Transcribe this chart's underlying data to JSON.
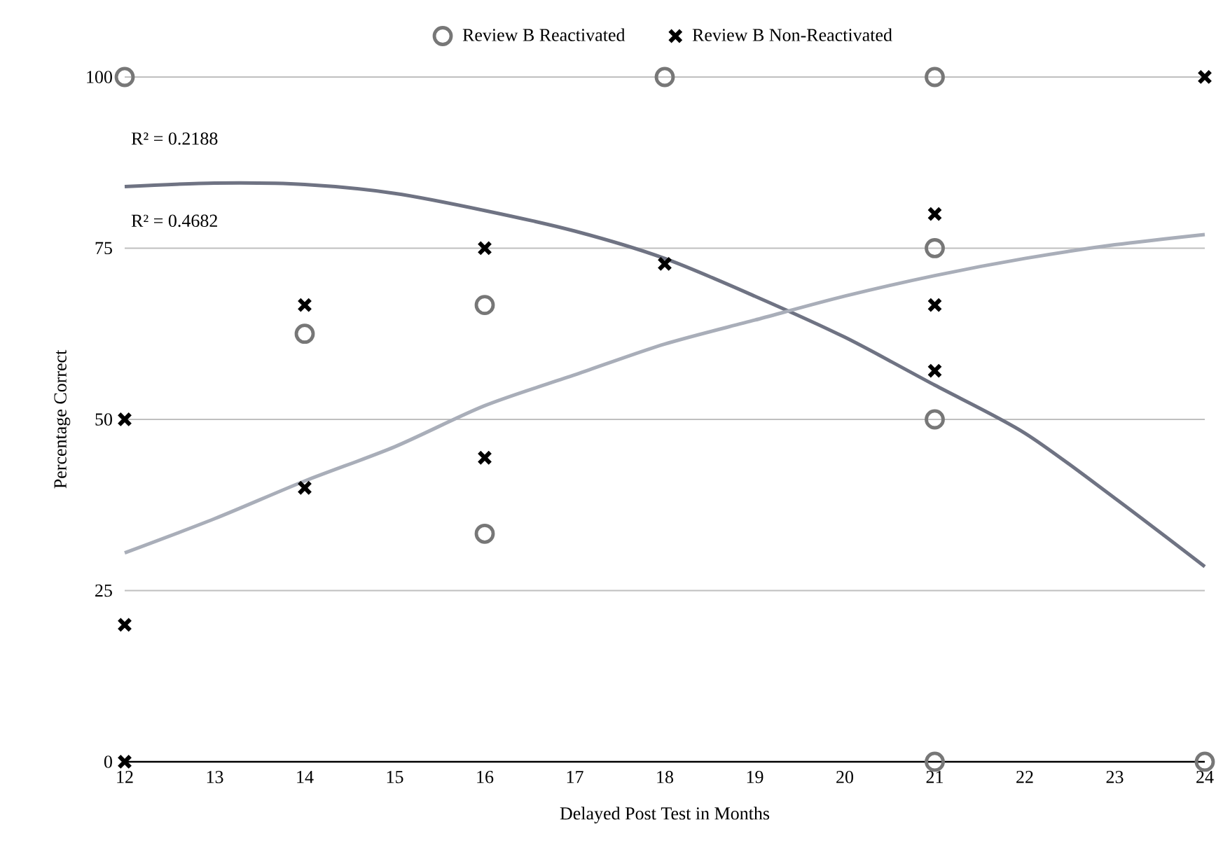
{
  "chart_data": {
    "type": "scatter",
    "xlabel": "Delayed Post Test in Months",
    "ylabel": "Percentage Correct",
    "xlim": [
      12,
      24
    ],
    "xticks": [
      12,
      13,
      14,
      15,
      16,
      17,
      18,
      19,
      20,
      21,
      22,
      23,
      24
    ],
    "ylim": [
      0,
      100
    ],
    "yticks": [
      0,
      25,
      50,
      75,
      100
    ],
    "grid": "y",
    "legend": "top",
    "annotations": [
      "R² = 0.2188",
      "R² = 0.4682"
    ],
    "series": [
      {
        "name": "Review B Reactivated",
        "marker": "circle",
        "color": "#777777",
        "x": [
          12,
          14,
          16,
          16,
          18,
          21,
          21,
          21,
          21,
          24
        ],
        "values": [
          100,
          62.5,
          66.7,
          33.3,
          100,
          100,
          75,
          50,
          0,
          0
        ]
      },
      {
        "name": "Review B Non-Reactivated",
        "marker": "cross",
        "color": "#000000",
        "x": [
          12,
          12,
          12,
          14,
          14,
          16,
          16,
          18,
          21,
          21,
          21,
          24
        ],
        "values": [
          50,
          20,
          0,
          66.7,
          40,
          75,
          44.4,
          72.7,
          80,
          66.7,
          57.1,
          100
        ]
      },
      {
        "type": "line",
        "marker": "none",
        "line_style": "solid",
        "color": "#6f7383",
        "x": [
          12,
          13,
          14,
          15,
          16,
          17,
          18,
          19,
          20,
          21,
          22,
          23,
          24
        ],
        "values": [
          84,
          84.5,
          84.3,
          83,
          80.5,
          77.5,
          73.5,
          68,
          62,
          55,
          48,
          38.5,
          28.5
        ]
      },
      {
        "type": "line",
        "marker": "none",
        "line_style": "solid",
        "color": "#a9aeb9",
        "x": [
          12,
          13,
          14,
          15,
          16,
          17,
          18,
          19,
          20,
          21,
          22,
          23,
          24
        ],
        "values": [
          30.5,
          35.5,
          41,
          46,
          52,
          56.5,
          61,
          64.5,
          68,
          71,
          73.5,
          75.5,
          77
        ]
      }
    ]
  }
}
